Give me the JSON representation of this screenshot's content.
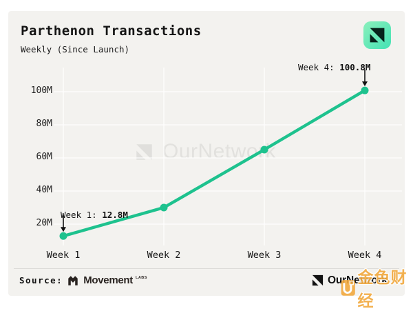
{
  "header": {
    "title": "Parthenon Transactions",
    "subtitle": "Weekly (Since Launch)",
    "logo_icon": "ournetwork-icon"
  },
  "chart_data": {
    "type": "line",
    "categories": [
      "Week 1",
      "Week 2",
      "Week 3",
      "Week 4"
    ],
    "series": [
      {
        "name": "Parthenon Transactions",
        "values": [
          12.8,
          30,
          65,
          100.8
        ]
      }
    ],
    "unit": "M",
    "title": "Parthenon Transactions",
    "subtitle": "Weekly (Since Launch)",
    "xlabel": "",
    "ylabel": "",
    "y_ticks": [
      20,
      40,
      60,
      80,
      100
    ],
    "y_tick_labels": [
      "20M",
      "40M",
      "60M",
      "80M",
      "100M"
    ],
    "ylim": [
      5,
      112
    ],
    "grid": true,
    "legend": false,
    "line_color": "#1ec28e",
    "annotations": [
      {
        "point_index": 0,
        "text": "Week 1: ",
        "value": "12.8M"
      },
      {
        "point_index": 3,
        "text": "Week 4: ",
        "value": "100.8M"
      }
    ]
  },
  "watermark": {
    "icon": "ournetwork-icon",
    "text": "OurNetwork"
  },
  "footer": {
    "source_label": "Source:",
    "source_logo_icon": "movement-icon",
    "source_name": "Movement",
    "source_suffix": "LABS",
    "brand_logo_icon": "ournetwork-icon",
    "brand": "OurNetwork"
  },
  "overlay_watermark": {
    "icon": "jinse-icon",
    "text": "金色财经"
  },
  "colors": {
    "background": "#f3f2ef",
    "page": "#ffffff",
    "accent_line": "#1ec28e",
    "grid": "#ffffff",
    "text": "#191919",
    "watermark_gray": "#e2e1de",
    "logo_gradient_start": "#8bf0bc",
    "logo_gradient_end": "#44e2b4",
    "jinse_orange": "#f2a93e"
  }
}
